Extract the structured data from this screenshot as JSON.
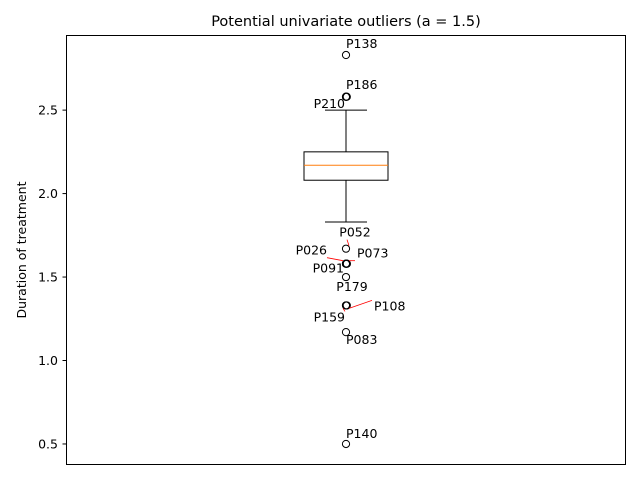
{
  "chart_data": {
    "type": "box",
    "title": "Potential univariate outliers (a = 1.5)",
    "xlabel": "",
    "ylabel": "Duration of treatment",
    "ylim": [
      0.38,
      2.95
    ],
    "yticks": [
      0.5,
      1.0,
      1.5,
      2.0,
      2.5
    ],
    "ytick_labels": [
      "0.5",
      "1.0",
      "1.5",
      "2.0",
      "2.5"
    ],
    "box": {
      "whisker_low": 1.83,
      "q1": 2.08,
      "median": 2.17,
      "q3": 2.25,
      "whisker_high": 2.5
    },
    "outliers": [
      {
        "label": "P138",
        "value": 2.83
      },
      {
        "label": "P186",
        "value": 2.58
      },
      {
        "label": "P210",
        "value": 2.58
      },
      {
        "label": "P052",
        "value": 1.67
      },
      {
        "label": "P026",
        "value": 1.58
      },
      {
        "label": "P073",
        "value": 1.58
      },
      {
        "label": "P091",
        "value": 1.58
      },
      {
        "label": "P179",
        "value": 1.5
      },
      {
        "label": "P108",
        "value": 1.33
      },
      {
        "label": "P159",
        "value": 1.33
      },
      {
        "label": "P083",
        "value": 1.17
      },
      {
        "label": "P140",
        "value": 0.5
      }
    ],
    "colors": {
      "box": "#000000",
      "median": "#ff7f0e",
      "annotation_arrow": "#ff0000"
    },
    "grid": false,
    "legend": "none"
  }
}
